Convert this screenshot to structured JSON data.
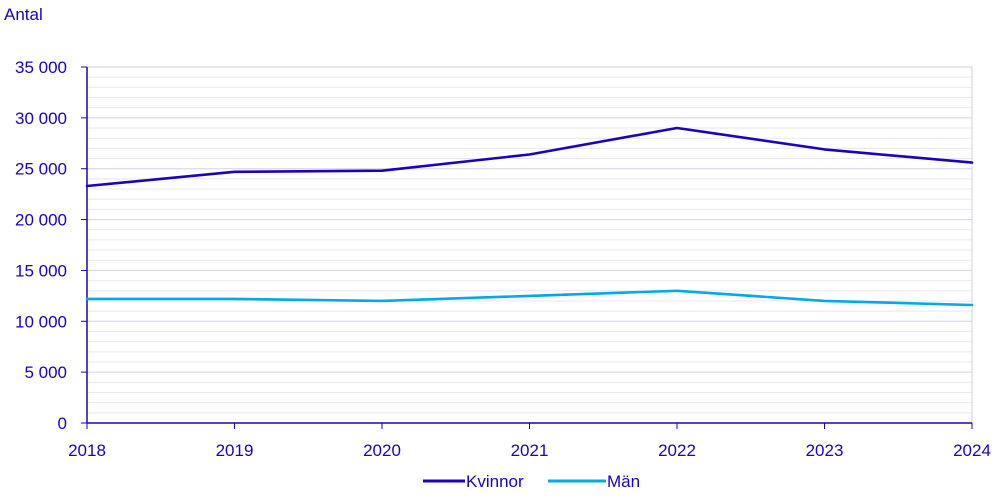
{
  "colors": {
    "axis_text": "#1e00be",
    "axis_line": "#1e00be",
    "grid_major": "#d2d2e6",
    "grid_minor": "#e8e8f2",
    "series_kvinnor": "#1e00be",
    "series_man": "#00aae6"
  },
  "chart_data": {
    "type": "line",
    "title": "",
    "ylabel": "Antal",
    "xlabel": "",
    "x": [
      "2018",
      "2019",
      "2020",
      "2021",
      "2022",
      "2023",
      "2024"
    ],
    "ylim": [
      0,
      35000
    ],
    "yticks": [
      0,
      5000,
      10000,
      15000,
      20000,
      25000,
      30000,
      35000
    ],
    "ytick_labels": [
      "0",
      "5 000",
      "10 000",
      "15 000",
      "20 000",
      "25 000",
      "30 000",
      "35 000"
    ],
    "minor_grid_step": 1000,
    "grid": true,
    "legend_position": "bottom-center",
    "series": [
      {
        "name": "Kvinnor",
        "color": "#1e00be",
        "values": [
          23300,
          24700,
          24800,
          26400,
          29000,
          26900,
          25600
        ]
      },
      {
        "name": "Män",
        "color": "#00aae6",
        "values": [
          12200,
          12200,
          12000,
          12500,
          13000,
          12000,
          11600
        ]
      }
    ]
  }
}
